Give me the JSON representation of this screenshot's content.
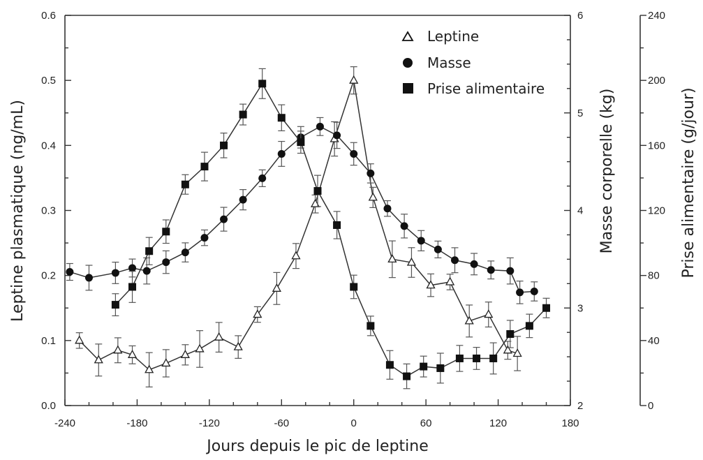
{
  "chart_data": {
    "type": "line",
    "xlabel": "Jours depuis le pic de leptine",
    "x_ticks": [
      "-240",
      "-180",
      "-120",
      "-60",
      "0",
      "60",
      "120",
      "180"
    ],
    "xlim": [
      -240,
      180
    ],
    "axes": {
      "left": {
        "label": "Leptine plasmatique (ng/mL)",
        "ylim": [
          0,
          0.6
        ],
        "ticks": [
          "0.0",
          "0.1",
          "0.2",
          "0.3",
          "0.4",
          "0.5",
          "0.6"
        ]
      },
      "middle": {
        "label": "Masse corporelle (kg)",
        "ylim": [
          2,
          6
        ],
        "ticks": [
          "2",
          "3",
          "4",
          "5",
          "6"
        ]
      },
      "right": {
        "label": "Prise alimentaire (g/jour)",
        "ylim": [
          0,
          240
        ],
        "ticks": [
          "0",
          "40",
          "80",
          "120",
          "160",
          "200",
          "240"
        ]
      }
    },
    "legend_position": "top-right",
    "series": [
      {
        "name": "Leptine",
        "axis": "left",
        "marker": "triangle-open",
        "x": [
          -228,
          -212,
          -196,
          -184,
          -170,
          -156,
          -140,
          -128,
          -112,
          -96,
          -80,
          -64,
          -48,
          -32,
          -16,
          0,
          16,
          32,
          48,
          64,
          80,
          96,
          112,
          128,
          136
        ],
        "y": [
          0.1,
          0.07,
          0.085,
          0.078,
          0.055,
          0.065,
          0.078,
          0.087,
          0.105,
          0.09,
          0.14,
          0.18,
          0.23,
          0.31,
          0.41,
          0.5,
          0.32,
          0.225,
          0.22,
          0.185,
          0.19,
          0.13,
          0.14,
          0.085,
          0.08
        ]
      },
      {
        "name": "Masse",
        "axis": "middle",
        "marker": "circle-filled",
        "x": [
          -236,
          -220,
          -198,
          -184,
          -172,
          -156,
          -140,
          -124,
          -108,
          -92,
          -76,
          -60,
          -44,
          -28,
          -14,
          0,
          14,
          28,
          42,
          56,
          70,
          84,
          100,
          114,
          130,
          138,
          150
        ],
        "y": [
          3.37,
          3.31,
          3.36,
          3.41,
          3.38,
          3.47,
          3.57,
          3.72,
          3.91,
          4.11,
          4.33,
          4.58,
          4.75,
          4.86,
          4.77,
          4.58,
          4.38,
          4.02,
          3.84,
          3.69,
          3.6,
          3.49,
          3.45,
          3.39,
          3.38,
          3.16,
          3.17
        ]
      },
      {
        "name": "Prise alimentaire",
        "axis": "right",
        "marker": "square-filled",
        "x": [
          -198,
          -184,
          -170,
          -156,
          -140,
          -124,
          -108,
          -92,
          -76,
          -60,
          -44,
          -30,
          -14,
          0,
          14,
          30,
          44,
          58,
          72,
          88,
          102,
          116,
          130,
          146,
          160
        ],
        "y": [
          62,
          73,
          95,
          107,
          136,
          147,
          160,
          179,
          198,
          177,
          162,
          132,
          111,
          73,
          49,
          25,
          18,
          24,
          23,
          29,
          29,
          29,
          44,
          49,
          60
        ]
      }
    ]
  }
}
